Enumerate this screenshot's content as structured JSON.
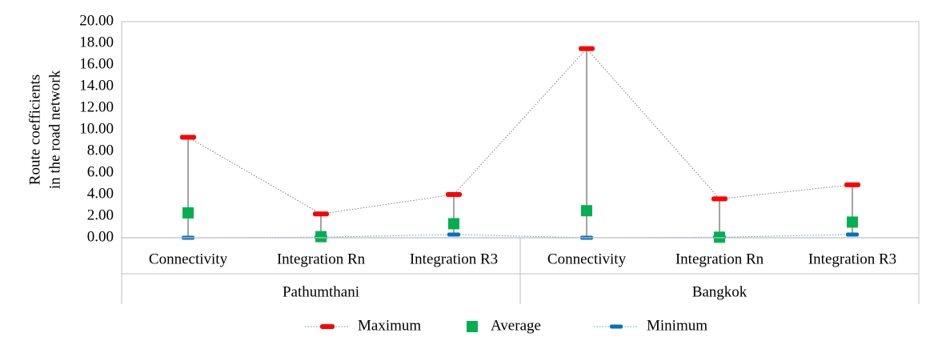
{
  "chart_data": {
    "type": "stock-hilo",
    "ylabel_lines": [
      "Route coefficients",
      "in the road network"
    ],
    "ylim": [
      0,
      20
    ],
    "ytick_step": 2,
    "ytick_labels": [
      "0.00",
      "2.00",
      "4.00",
      "6.00",
      "8.00",
      "10.00",
      "12.00",
      "14.00",
      "16.00",
      "18.00",
      "20.00"
    ],
    "groups": [
      {
        "label": "Pathumthani",
        "categories": [
          "Connectivity",
          "Integration Rn",
          "Integration R3"
        ]
      },
      {
        "label": "Bangkok",
        "categories": [
          "Connectivity",
          "Integration Rn",
          "Integration R3"
        ]
      }
    ],
    "series": [
      {
        "name": "Maximum",
        "color": "#ff0000",
        "values": [
          9.3,
          2.2,
          4.0,
          17.5,
          3.6,
          4.9
        ]
      },
      {
        "name": "Average",
        "color": "#00b050",
        "values": [
          2.3,
          0.1,
          1.3,
          2.5,
          0.05,
          1.45
        ]
      },
      {
        "name": "Minimum",
        "color": "#0070c0",
        "values": [
          0.0,
          0.05,
          0.3,
          0.0,
          0.05,
          0.3
        ]
      }
    ],
    "legend_position": "bottom",
    "grid": false
  }
}
